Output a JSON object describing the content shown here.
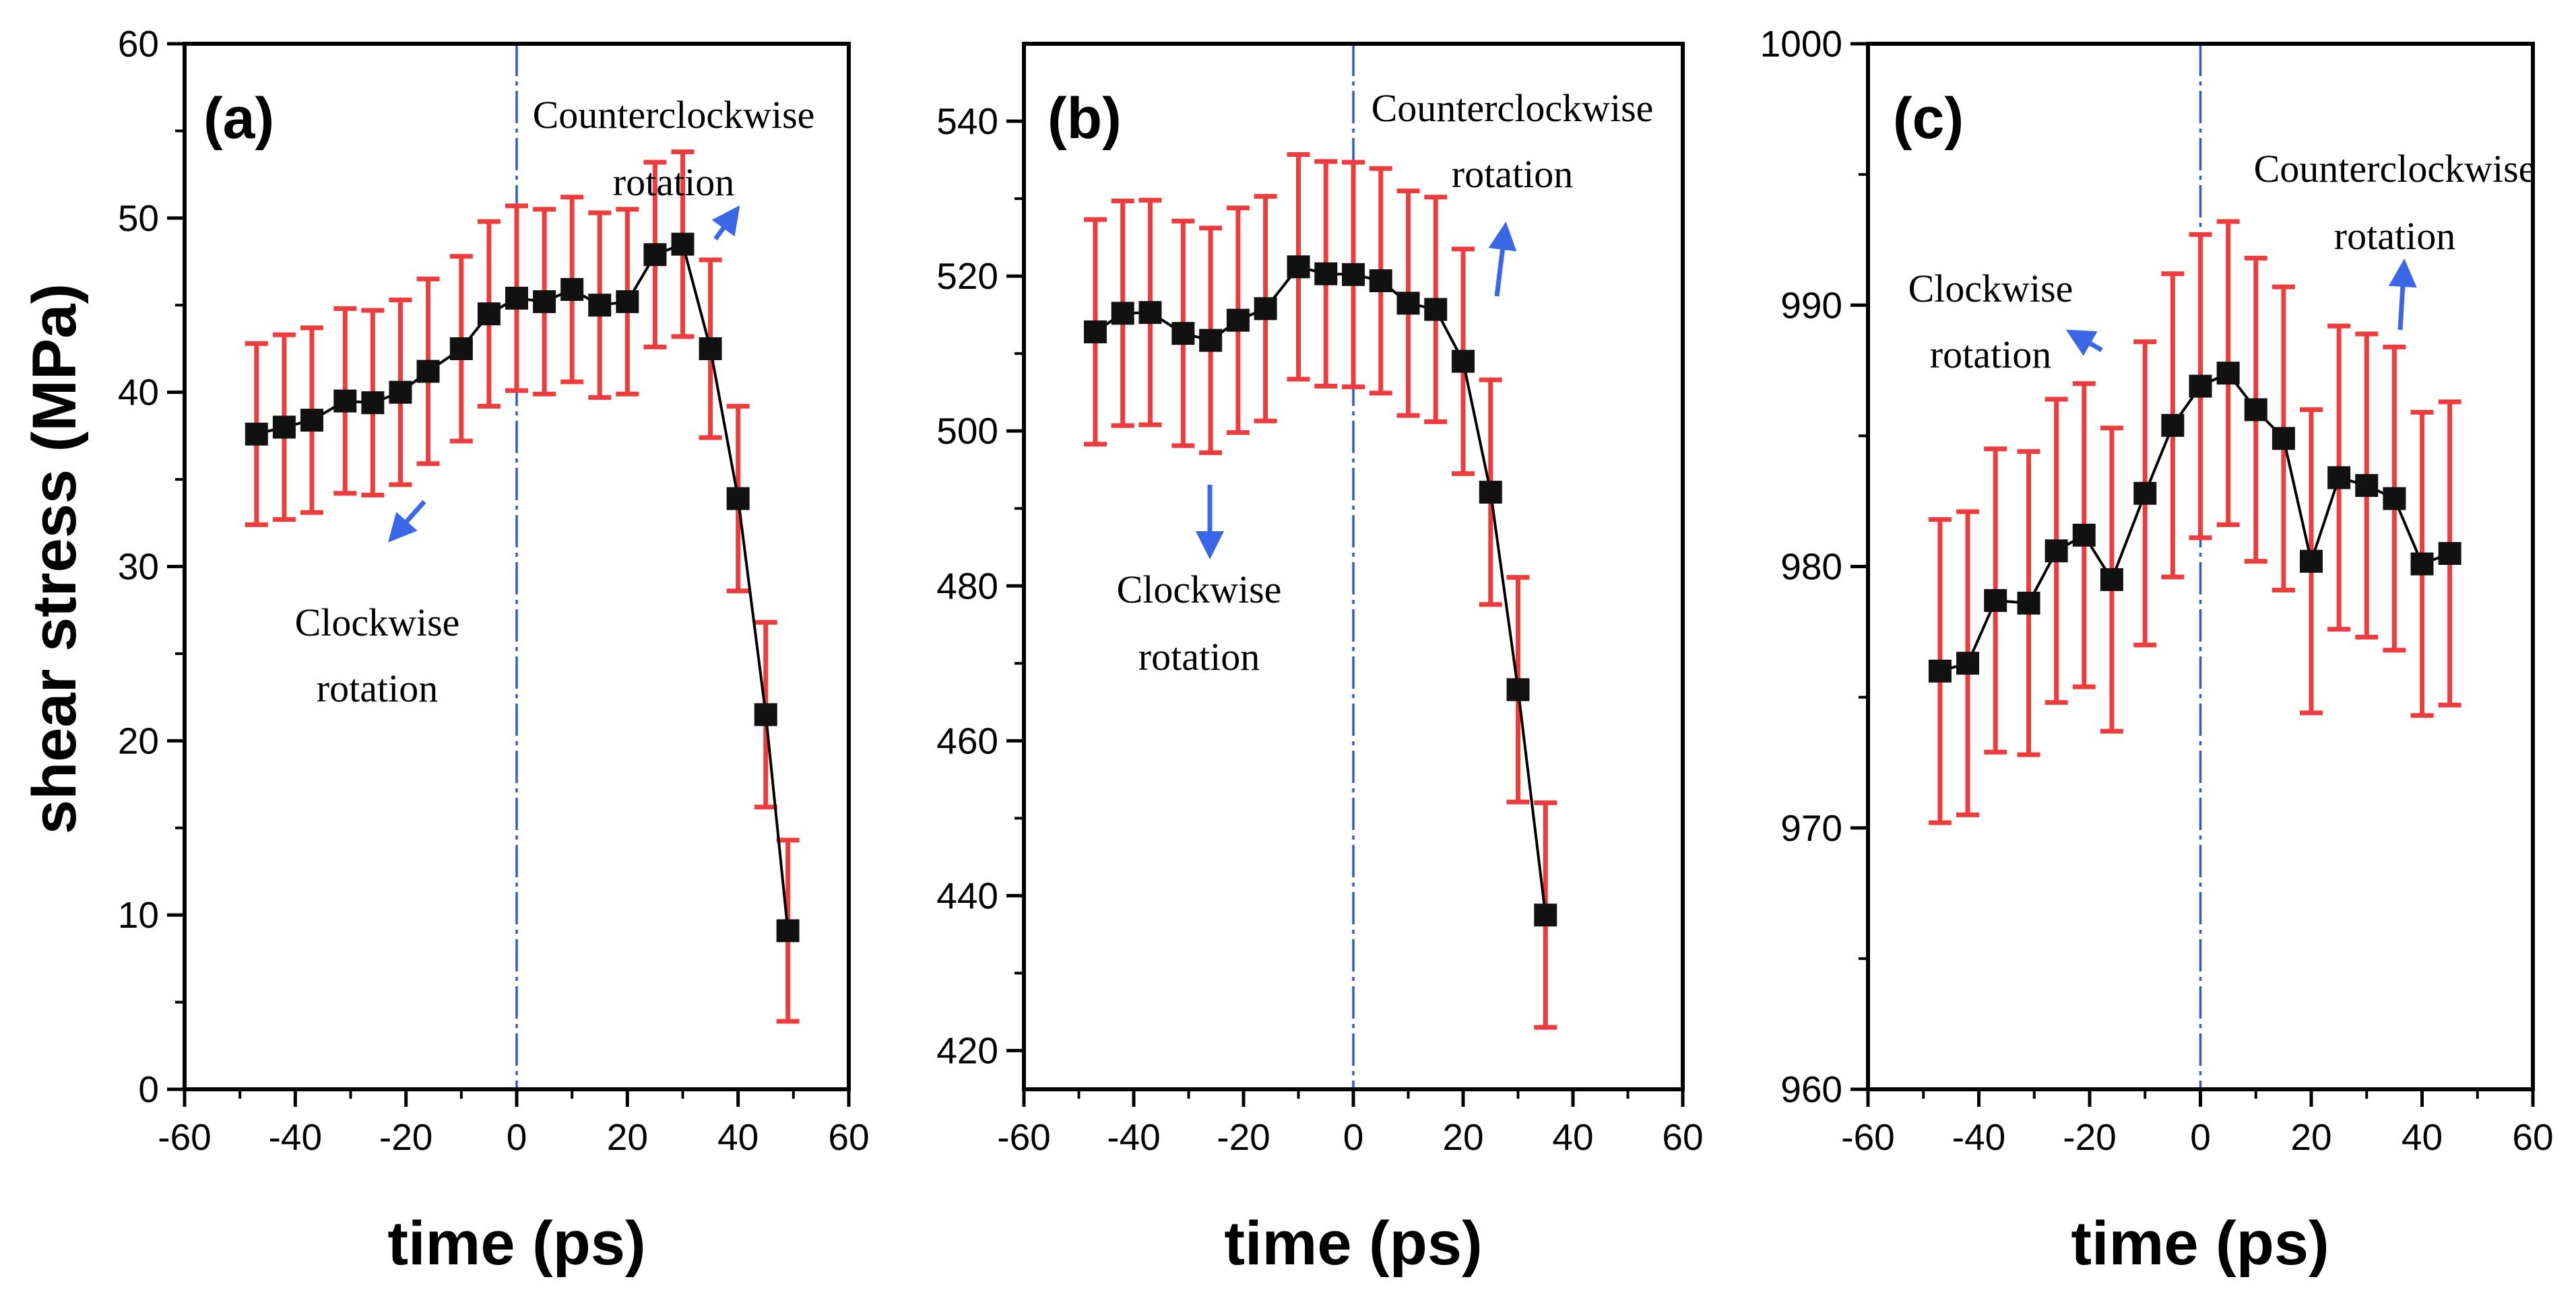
{
  "chart_data": [
    {
      "type": "line",
      "panel_label": "(a)",
      "xlabel": "time (ps)",
      "ylabel": "shear stress (MPa)",
      "xlim": [
        -60,
        60
      ],
      "ylim": [
        0,
        60
      ],
      "x_ticks": [
        -60,
        -40,
        -20,
        0,
        20,
        40,
        60
      ],
      "y_ticks": [
        0,
        10,
        20,
        30,
        40,
        50,
        60
      ],
      "x_tick_labels": [
        "-60",
        "-40",
        "-20",
        "0",
        "20",
        "40",
        "60"
      ],
      "y_tick_labels": [
        "0",
        "10",
        "20",
        "30",
        "40",
        "50",
        "60"
      ],
      "reference_line_x": 0,
      "series": [
        {
          "name": "shear stress",
          "x": [
            -47,
            -42,
            -37,
            -31,
            -26,
            -21,
            -16,
            -10,
            -5,
            0,
            5,
            10,
            15,
            20,
            25,
            30,
            35,
            40,
            45,
            49
          ],
          "y": [
            37.6,
            38.0,
            38.4,
            39.5,
            39.4,
            40.0,
            41.2,
            42.5,
            44.5,
            45.4,
            45.2,
            45.9,
            45.0,
            45.2,
            47.9,
            48.5,
            42.5,
            33.9,
            21.5,
            9.1
          ],
          "err": [
            5.2,
            5.3,
            5.3,
            5.3,
            5.3,
            5.3,
            5.3,
            5.3,
            5.3,
            5.3,
            5.3,
            5.3,
            5.3,
            5.3,
            5.3,
            5.3,
            5.1,
            5.3,
            5.3,
            5.2
          ]
        }
      ],
      "annotations": [
        {
          "line1": "Counterclockwise",
          "line2": "rotation",
          "arrow_direction": "up-right"
        },
        {
          "line1": "Clockwise",
          "line2": "rotation",
          "arrow_direction": "down-left"
        }
      ]
    },
    {
      "type": "line",
      "panel_label": "(b)",
      "xlabel": "time (ps)",
      "ylabel": "",
      "xlim": [
        -60,
        60
      ],
      "ylim": [
        415,
        550
      ],
      "x_ticks": [
        -60,
        -40,
        -20,
        0,
        20,
        40,
        60
      ],
      "y_ticks": [
        420,
        440,
        460,
        480,
        500,
        520,
        540
      ],
      "x_tick_labels": [
        "-60",
        "-40",
        "-20",
        "0",
        "20",
        "40",
        "60"
      ],
      "y_tick_labels": [
        "420",
        "440",
        "460",
        "480",
        "500",
        "520",
        "540"
      ],
      "reference_line_x": 0,
      "series": [
        {
          "name": "shear stress",
          "x": [
            -47,
            -42,
            -37,
            -31,
            -26,
            -21,
            -16,
            -10,
            -5,
            0,
            5,
            10,
            15,
            20,
            25,
            30,
            35
          ],
          "y": [
            512.8,
            515.2,
            515.3,
            512.6,
            511.7,
            514.3,
            515.8,
            521.2,
            520.3,
            520.2,
            519.4,
            516.5,
            515.7,
            509.0,
            492.1,
            466.6,
            437.5
          ],
          "err": [
            14.5,
            14.5,
            14.5,
            14.5,
            14.5,
            14.5,
            14.5,
            14.5,
            14.5,
            14.5,
            14.5,
            14.5,
            14.5,
            14.5,
            14.5,
            14.5,
            14.5
          ]
        }
      ],
      "annotations": [
        {
          "line1": "Counterclockwise",
          "line2": "rotation",
          "arrow_direction": "up"
        },
        {
          "line1": "Clockwise",
          "line2": "rotation",
          "arrow_direction": "down"
        }
      ]
    },
    {
      "type": "line",
      "panel_label": "(c)",
      "xlabel": "time (ps)",
      "ylabel": "",
      "xlim": [
        -60,
        60
      ],
      "ylim": [
        960,
        1000
      ],
      "x_ticks": [
        -60,
        -40,
        -20,
        0,
        20,
        40,
        60
      ],
      "y_ticks": [
        960,
        970,
        980,
        990,
        1000
      ],
      "x_tick_labels": [
        "-60",
        "-40",
        "-20",
        "0",
        "20",
        "40",
        "60"
      ],
      "y_tick_labels": [
        "960",
        "970",
        "980",
        "990",
        "1000"
      ],
      "reference_line_x": 0,
      "series": [
        {
          "name": "shear stress",
          "x": [
            -47,
            -42,
            -37,
            -31,
            -26,
            -21,
            -16,
            -10,
            -5,
            0,
            5,
            10,
            15,
            20,
            25,
            30,
            35,
            40,
            45
          ],
          "y": [
            976.0,
            976.3,
            978.7,
            978.6,
            980.6,
            981.2,
            979.5,
            982.8,
            985.4,
            986.9,
            987.4,
            986.0,
            984.9,
            980.2,
            983.4,
            983.1,
            982.6,
            980.1,
            980.5
          ],
          "err": [
            5.8,
            5.8,
            5.8,
            5.8,
            5.8,
            5.8,
            5.8,
            5.8,
            5.8,
            5.8,
            5.8,
            5.8,
            5.8,
            5.8,
            5.8,
            5.8,
            5.8,
            5.8,
            5.8
          ]
        }
      ],
      "annotations": [
        {
          "line1": "Counterclockwise",
          "line2": "rotation",
          "arrow_direction": "up"
        },
        {
          "line1": "Clockwise",
          "line2": "rotation",
          "arrow_direction": "up-left"
        }
      ]
    }
  ],
  "colors": {
    "errorbar": "#ee3b3b",
    "marker": "#111111",
    "line": "#000000",
    "reference_line": "#3355dd",
    "arrow": "#3a66e8"
  }
}
